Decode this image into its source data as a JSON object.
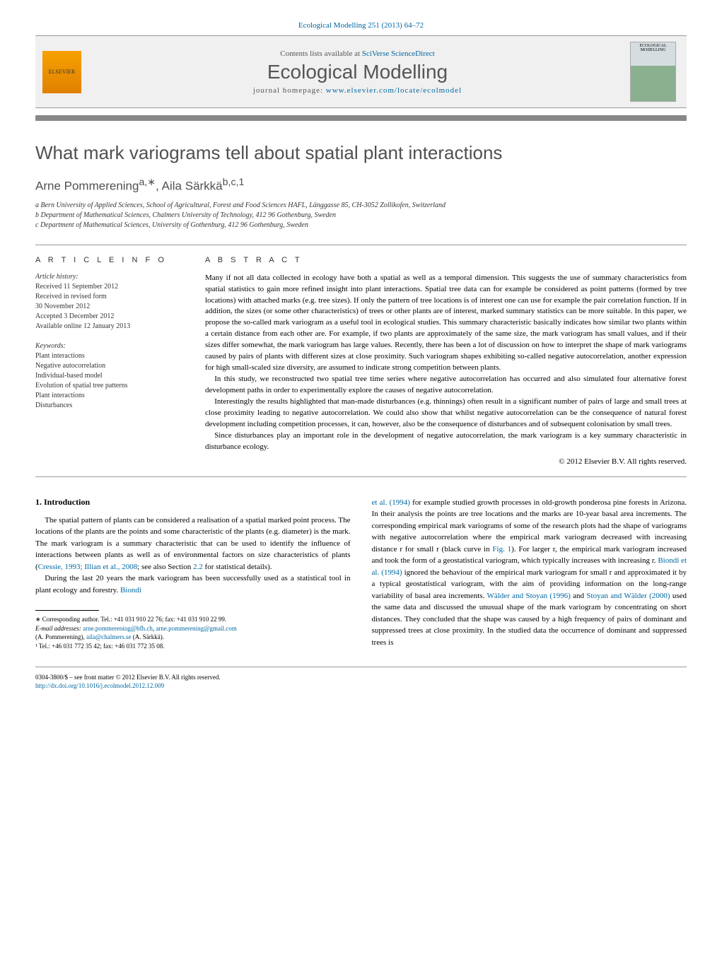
{
  "journal_ref": "Ecological Modelling 251 (2013) 64–72",
  "banner": {
    "contents_text": "Contents lists available at ",
    "contents_link": "SciVerse ScienceDirect",
    "journal_title": "Ecological Modelling",
    "homepage_label": "journal homepage: ",
    "homepage_link": "www.elsevier.com/locate/ecolmodel",
    "cover_label": "ECOLOGICAL MODELLING"
  },
  "article": {
    "title": "What mark variograms tell about spatial plant interactions",
    "authors_html": "Arne Pommerening",
    "author2": "Aila Särkkä",
    "aff_a": "a Bern University of Applied Sciences, School of Agricultural, Forest and Food Sciences HAFL, Länggasse 85, CH-3052 Zollikofen, Switzerland",
    "aff_b": "b Department of Mathematical Sciences, Chalmers University of Technology, 412 96 Gothenburg, Sweden",
    "aff_c": "c Department of Mathematical Sciences, University of Gothenburg, 412 96 Gothenburg, Sweden",
    "sup_a": "a,∗",
    "sup_b": "b,c,1"
  },
  "info": {
    "heading": "a r t i c l e   i n f o",
    "history_label": "Article history:",
    "received": "Received 11 September 2012",
    "revised1": "Received in revised form",
    "revised2": "30 November 2012",
    "accepted": "Accepted 3 December 2012",
    "online": "Available online 12 January 2013",
    "keywords_label": "Keywords:",
    "k1": "Plant interactions",
    "k2": "Negative autocorrelation",
    "k3": "Individual-based model",
    "k4": "Evolution of spatial tree patterns",
    "k5": "Plant interactions",
    "k6": "Disturbances"
  },
  "abstract": {
    "heading": "a b s t r a c t",
    "p1": "Many if not all data collected in ecology have both a spatial as well as a temporal dimension. This suggests the use of summary characteristics from spatial statistics to gain more refined insight into plant interactions. Spatial tree data can for example be considered as point patterns (formed by tree locations) with attached marks (e.g. tree sizes). If only the pattern of tree locations is of interest one can use for example the pair correlation function. If in addition, the sizes (or some other characteristics) of trees or other plants are of interest, marked summary statistics can be more suitable. In this paper, we propose the so-called mark variogram as a useful tool in ecological studies. This summary characteristic basically indicates how similar two plants within a certain distance from each other are. For example, if two plants are approximately of the same size, the mark variogram has small values, and if their sizes differ somewhat, the mark variogram has large values. Recently, there has been a lot of discussion on how to interpret the shape of mark variograms caused by pairs of plants with different sizes at close proximity. Such variogram shapes exhibiting so-called negative autocorrelation, another expression for high small-scaled size diversity, are assumed to indicate strong competition between plants.",
    "p2": "In this study, we reconstructed two spatial tree time series where negative autocorrelation has occurred and also simulated four alternative forest development paths in order to experimentally explore the causes of negative autocorrelation.",
    "p3": "Interestingly the results highlighted that man-made disturbances (e.g. thinnings) often result in a significant number of pairs of large and small trees at close proximity leading to negative autocorrelation. We could also show that whilst negative autocorrelation can be the consequence of natural forest development including competition processes, it can, however, also be the consequence of disturbances and of subsequent colonisation by small trees.",
    "p4": "Since disturbances play an important role in the development of negative autocorrelation, the mark variogram is a key summary characteristic in disturbance ecology.",
    "copyright": "© 2012 Elsevier B.V. All rights reserved."
  },
  "body": {
    "section_1": "1.  Introduction",
    "left_p1": "The spatial pattern of plants can be considered a realisation of a spatial marked point process. The locations of the plants are the points and some characteristic of the plants (e.g. diameter) is the mark. The mark variogram is a summary characteristic that can be used to identify the influence of interactions between plants as well as of environmental factors on size characteristics of plants (",
    "left_p1_link1": "Cressie, 1993; Illian et al., 2008",
    "left_p1_cont": "; see also Section ",
    "left_p1_link2": "2.2",
    "left_p1_end": " for statistical details).",
    "left_p2_start": "During the last 20 years the mark variogram has been successfully used as a statistical tool in plant ecology and forestry. ",
    "left_p2_link": "Biondi",
    "right_p1_link1": "et al. (1994)",
    "right_p1": " for example studied growth processes in old-growth ponderosa pine forests in Arizona. In their analysis the points are tree locations and the marks are 10-year basal area increments. The corresponding empirical mark variograms of some of the research plots had the shape of variograms with negative autocorrelation where the empirical mark variogram decreased with increasing distance r for small r (black curve in ",
    "right_p1_link2": "Fig. 1",
    "right_p1_cont1": "). For larger r, the empirical mark variogram increased and took the form of a geostatistical variogram, which typically increases with increasing r. ",
    "right_p1_link3": "Biondi et al. (1994)",
    "right_p1_cont2": " ignored the behaviour of the empirical mark variogram for small r and approximated it by a typical geostatistical variogram, with the aim of providing information on the long-range variability of basal area increments. ",
    "right_p1_link4": "Wälder and Stoyan (1996)",
    "right_p1_cont3": " and ",
    "right_p1_link5": "Stoyan and Wälder (2000)",
    "right_p1_cont4": " used the same data and discussed the unusual shape of the mark variogram by concentrating on short distances. They concluded that the shape was caused by a high frequency of pairs of dominant and suppressed trees at close proximity. In the studied data the occurrence of dominant and suppressed trees is"
  },
  "footnotes": {
    "corr": "∗ Corresponding author. Tel.: +41 031 910 22 76; fax: +41 031 910 22 99.",
    "email_label": "E-mail addresses: ",
    "email1": "arne.pommerening@bfh.ch",
    "email_sep": ", ",
    "email2": "arne.pommerening@gmail.com",
    "name1": "(A. Pommerening), ",
    "email3": "aila@chalmers.se",
    "name2": " (A. Särkkä).",
    "note1": "¹ Tel.: +46 031 772 35 42; fax: +46 031 772 35 08."
  },
  "footer": {
    "line1": "0304-3800/$ – see front matter © 2012 Elsevier B.V. All rights reserved.",
    "doi": "http://dx.doi.org/10.1016/j.ecolmodel.2012.12.009"
  },
  "colors": {
    "link": "#0066a0",
    "text": "#333333",
    "title_gray": "#505050",
    "bar_gray": "#888888"
  }
}
